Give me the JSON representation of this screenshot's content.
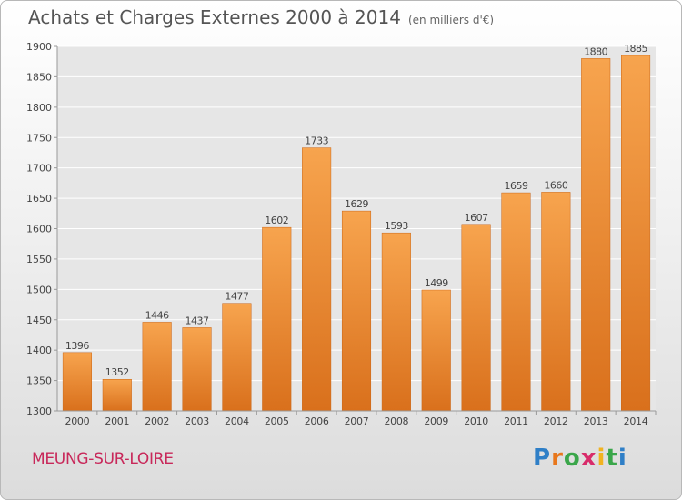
{
  "header": {
    "title": "Achats et Charges Externes 2000 à 2014",
    "subtitle": "(en milliers d'€)"
  },
  "footer": {
    "town": "MEUNG-SUR-LOIRE",
    "logo_letters": [
      "P",
      "r",
      "o",
      "x",
      "i",
      "t",
      "i"
    ]
  },
  "chart_data": {
    "type": "bar",
    "title": "Achats et Charges Externes 2000 à 2014",
    "subtitle": "(en milliers d'€)",
    "xlabel": "",
    "ylabel": "",
    "categories": [
      "2000",
      "2001",
      "2002",
      "2003",
      "2004",
      "2005",
      "2006",
      "2007",
      "2008",
      "2009",
      "2010",
      "2011",
      "2012",
      "2013",
      "2014"
    ],
    "values": [
      1396,
      1352,
      1446,
      1437,
      1477,
      1602,
      1733,
      1629,
      1593,
      1499,
      1607,
      1659,
      1660,
      1880,
      1885
    ],
    "ylim": [
      1300,
      1900
    ],
    "yticks": [
      1300,
      1350,
      1400,
      1450,
      1500,
      1550,
      1600,
      1650,
      1700,
      1750,
      1800,
      1850,
      1900
    ],
    "grid": true,
    "legend": "none",
    "bar_color_light": "#f7a44e",
    "bar_color_dark": "#d9701c"
  }
}
